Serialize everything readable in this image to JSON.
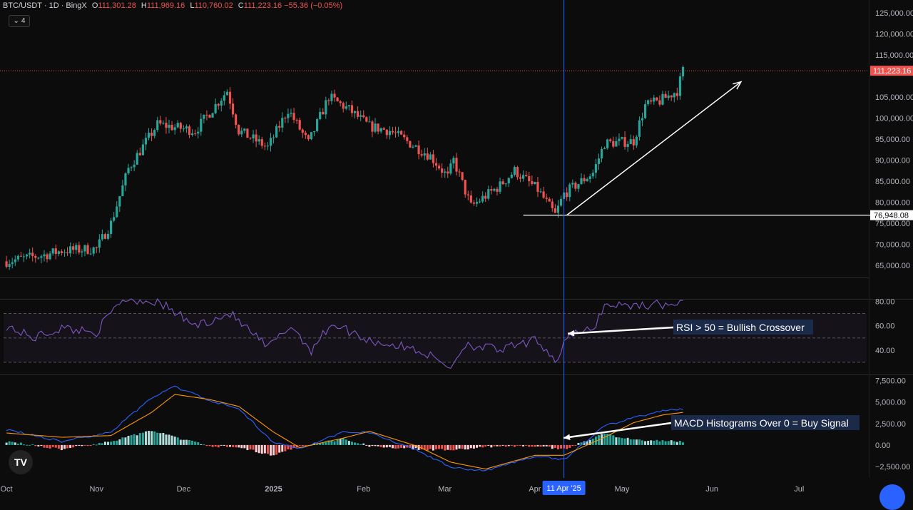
{
  "header": {
    "symbol": "BTC/USDT · 1D · BingX",
    "open_label": "O",
    "open": "111,301.28",
    "high_label": "H",
    "high": "111,969.16",
    "low_label": "L",
    "low": "110,760.02",
    "close_label": "C",
    "close": "111,223.16",
    "change": "−55.36 (−0.05%)"
  },
  "collapse_button": {
    "icon": "chevron-down-icon",
    "count": "4"
  },
  "tv_logo": "TV",
  "colors": {
    "up": "#26a69a",
    "down": "#ef5350",
    "rsi": "#7e57c2",
    "macd": "#2962ff",
    "signal": "#ff9800",
    "crosshair": "#2962ff"
  },
  "chart_data": [
    {
      "type": "candlestick",
      "title": "BTC/USDT · 1D · BingX",
      "x_ticks": [
        "Oct",
        "Nov",
        "Dec",
        "2025",
        "Feb",
        "Mar",
        "Apr",
        "May",
        "Jun",
        "Jul"
      ],
      "y_ticks": [
        "125,000.00",
        "120,000.00",
        "115,000.00",
        "105,000.00",
        "100,000.00",
        "95,000.00",
        "90,000.00",
        "85,000.00",
        "80,000.00",
        "75,000.00",
        "70,000.00",
        "65,000.00"
      ],
      "ylim": [
        62500,
        127000
      ],
      "close_anchors": [
        [
          "Oct",
          66000
        ],
        [
          "Oct 14",
          67500
        ],
        [
          "Oct 20",
          68500
        ],
        [
          "Nov 1",
          69000
        ],
        [
          "Nov 6",
          75000
        ],
        [
          "Nov 12",
          88000
        ],
        [
          "Nov 22",
          98500
        ],
        [
          "Dec 5",
          97000
        ],
        [
          "Dec 16",
          106500
        ],
        [
          "Dec 20",
          97000
        ],
        [
          "Dec 30",
          93000
        ],
        [
          "Jan 6",
          102000
        ],
        [
          "Jan 13",
          94000
        ],
        [
          "Jan 20",
          105000
        ],
        [
          "Jan 27",
          102000
        ],
        [
          "Feb 3",
          98000
        ],
        [
          "Feb 10",
          97000
        ],
        [
          "Feb 24",
          91000
        ],
        [
          "Mar 2",
          86000
        ],
        [
          "Mar 4",
          90000
        ],
        [
          "Mar 10",
          79000
        ],
        [
          "Mar 20",
          84000
        ],
        [
          "Mar 25",
          87500
        ],
        [
          "Apr 2",
          83000
        ],
        [
          "Apr 8",
          77000
        ],
        [
          "Apr 11",
          82000
        ],
        [
          "Apr 21",
          87000
        ],
        [
          "Apr 25",
          94000
        ],
        [
          "May 5",
          94500
        ],
        [
          "May 9",
          103000
        ],
        [
          "May 14",
          104000
        ],
        [
          "May 20",
          106500
        ],
        [
          "May 22",
          111223
        ]
      ],
      "last_price": "111,223.16",
      "marked_level": "76,948.08",
      "marked_level_value": 76948.08
    },
    {
      "type": "line",
      "name": "RSI",
      "y_ticks": [
        "80.00",
        "60.00",
        "40.00"
      ],
      "bands": [
        30,
        50,
        70
      ],
      "ylim": [
        20,
        82
      ],
      "anchors": [
        [
          "Oct",
          60
        ],
        [
          "Oct 10",
          50
        ],
        [
          "Oct 20",
          58
        ],
        [
          "Nov 1",
          55
        ],
        [
          "Nov 10",
          82
        ],
        [
          "Nov 22",
          80
        ],
        [
          "Dec 5",
          60
        ],
        [
          "Dec 17",
          70
        ],
        [
          "Dec 30",
          42
        ],
        [
          "Jan 7",
          60
        ],
        [
          "Jan 14",
          40
        ],
        [
          "Jan 21",
          62
        ],
        [
          "Feb 3",
          48
        ],
        [
          "Feb 20",
          40
        ],
        [
          "Mar 3",
          26
        ],
        [
          "Mar 8",
          45
        ],
        [
          "Mar 20",
          40
        ],
        [
          "Apr 2",
          48
        ],
        [
          "Apr 9",
          30
        ],
        [
          "Apr 11",
          50
        ],
        [
          "Apr 21",
          57
        ],
        [
          "Apr 25",
          77
        ],
        [
          "May 9",
          77
        ],
        [
          "May 22",
          78
        ]
      ],
      "annotation": "RSI > 50 = Bullish Crossover"
    },
    {
      "type": "bar+line",
      "name": "MACD",
      "y_ticks": [
        "7,500.00",
        "5,000.00",
        "2,500.00",
        "0.00",
        "−2,500.00"
      ],
      "ylim": [
        -3500,
        7800
      ],
      "macd_anchors": [
        [
          "Oct",
          1800
        ],
        [
          "Oct 20",
          400
        ],
        [
          "Nov 6",
          1500
        ],
        [
          "Nov 20",
          5500
        ],
        [
          "Nov 28",
          6800
        ],
        [
          "Dec 10",
          5200
        ],
        [
          "Dec 20",
          4200
        ],
        [
          "Jan 1",
          300
        ],
        [
          "Jan 10",
          -400
        ],
        [
          "Jan 25",
          1500
        ],
        [
          "Feb 3",
          1500
        ],
        [
          "Feb 20",
          -700
        ],
        [
          "Mar 3",
          -2600
        ],
        [
          "Mar 15",
          -3000
        ],
        [
          "Apr 1",
          -1300
        ],
        [
          "Apr 11",
          -1700
        ],
        [
          "Apr 25",
          2200
        ],
        [
          "May 5",
          3200
        ],
        [
          "May 15",
          4000
        ],
        [
          "May 22",
          4200
        ]
      ],
      "signal_anchors": [
        [
          "Oct",
          1400
        ],
        [
          "Oct 20",
          900
        ],
        [
          "Nov 6",
          1100
        ],
        [
          "Nov 20",
          3800
        ],
        [
          "Nov 28",
          5900
        ],
        [
          "Dec 10",
          5300
        ],
        [
          "Dec 20",
          4500
        ],
        [
          "Jan 1",
          1500
        ],
        [
          "Jan 10",
          -300
        ],
        [
          "Jan 25",
          800
        ],
        [
          "Feb 3",
          1600
        ],
        [
          "Feb 20",
          -200
        ],
        [
          "Mar 3",
          -2000
        ],
        [
          "Mar 15",
          -2800
        ],
        [
          "Apr 1",
          -1200
        ],
        [
          "Apr 11",
          -1200
        ],
        [
          "Apr 25",
          900
        ],
        [
          "May 5",
          2600
        ],
        [
          "May 15",
          3500
        ],
        [
          "May 22",
          3800
        ]
      ],
      "annotation": "MACD Histograms Over 0 = Buy Signal"
    }
  ],
  "crosshair_date": "11 Apr '25"
}
